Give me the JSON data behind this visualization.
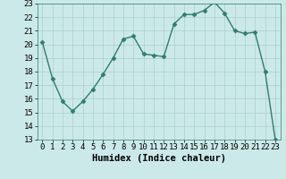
{
  "x": [
    0,
    1,
    2,
    3,
    4,
    5,
    6,
    7,
    8,
    9,
    10,
    11,
    12,
    13,
    14,
    15,
    16,
    17,
    18,
    19,
    20,
    21,
    22,
    23
  ],
  "y": [
    20.2,
    17.5,
    15.8,
    15.1,
    15.8,
    16.7,
    17.8,
    19.0,
    20.4,
    20.6,
    19.3,
    19.2,
    19.1,
    21.5,
    22.2,
    22.2,
    22.5,
    23.1,
    22.3,
    21.0,
    20.8,
    20.9,
    18.0,
    13.0
  ],
  "line_color": "#2e7d6e",
  "marker": "D",
  "marker_size": 2.5,
  "bg_color": "#cce9e9",
  "grid_color": "#aacfcf",
  "xlabel": "Humidex (Indice chaleur)",
  "xlim": [
    -0.5,
    23.5
  ],
  "ylim": [
    13,
    23
  ],
  "yticks": [
    13,
    14,
    15,
    16,
    17,
    18,
    19,
    20,
    21,
    22,
    23
  ],
  "xticks": [
    0,
    1,
    2,
    3,
    4,
    5,
    6,
    7,
    8,
    9,
    10,
    11,
    12,
    13,
    14,
    15,
    16,
    17,
    18,
    19,
    20,
    21,
    22,
    23
  ],
  "tick_fontsize": 6.5,
  "xlabel_fontsize": 7.5,
  "linewidth": 1.0
}
